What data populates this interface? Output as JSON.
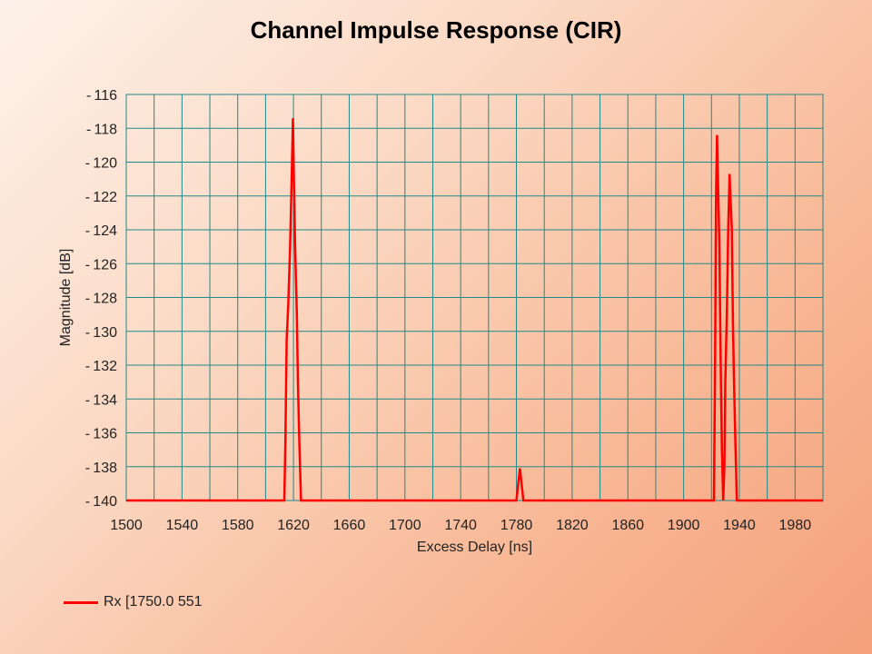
{
  "chart_data": {
    "type": "line",
    "title": "Channel Impulse Response (CIR)",
    "xlabel": "Excess Delay [ns]",
    "ylabel": "Magnitude [dB]",
    "xlim": [
      1500,
      2000
    ],
    "ylim": [
      -140,
      -116
    ],
    "x_ticks": [
      1500,
      1540,
      1580,
      1620,
      1660,
      1700,
      1740,
      1780,
      1820,
      1860,
      1900,
      1940,
      1980
    ],
    "y_ticks": [
      -116,
      -118,
      -120,
      -122,
      -124,
      -126,
      -128,
      -130,
      -132,
      -134,
      -136,
      -138,
      -140
    ],
    "grid": true,
    "legend_position": "bottom-left",
    "series": [
      {
        "name": "Rx [1750.0 551",
        "color": "#ff0000",
        "x": [
          1500,
          1613.4,
          1614.2,
          1615.1,
          1616.2,
          1617.6,
          1618.7,
          1619.6,
          1620.4,
          1621.2,
          1622.4,
          1623.2,
          1624.2,
          1625.4,
          1780.0,
          1782.5,
          1785.0,
          1786.5,
          1787.5,
          1788.8,
          1895.0,
          1921.8,
          1922.6,
          1923.3,
          1924.0,
          1924.9,
          1925.7,
          1926.3,
          1926.8,
          1927.5,
          1928.4,
          1929.3,
          1929.9,
          1931.0,
          1932.0,
          1933.0,
          1934.6,
          1935.4,
          1936.2,
          1937.3,
          1938.2,
          1939.0,
          1940.0,
          2000
        ],
        "y": [
          -140,
          -140,
          -136.5,
          -130.5,
          -128.5,
          -125,
          -121,
          -117.4,
          -121.5,
          -125,
          -129,
          -133,
          -136.5,
          -140,
          -140,
          -138.1,
          -140,
          -140,
          -140,
          -140,
          -140,
          -140,
          -131.5,
          -122,
          -118.4,
          -122,
          -125,
          -129.5,
          -133,
          -137,
          -140,
          -138,
          -133,
          -129,
          -124,
          -120.7,
          -124,
          -129.5,
          -133,
          -137,
          -140,
          -140,
          -140,
          -140
        ]
      }
    ]
  }
}
